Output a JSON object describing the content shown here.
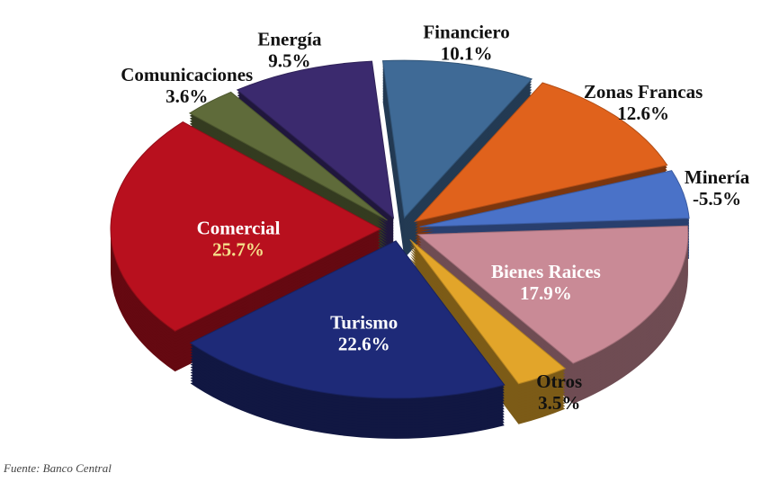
{
  "chart_data": {
    "type": "pie",
    "categories": [
      "Financiero",
      "Zonas Francas",
      "Minería",
      "Bienes Raices",
      "Otros",
      "Turismo",
      "Comercial",
      "Comunicaciones",
      "Energía"
    ],
    "values": [
      10.1,
      12.6,
      -5.5,
      17.9,
      3.5,
      22.6,
      25.7,
      3.6,
      9.5
    ],
    "value_labels": [
      "10.1%",
      "12.6%",
      "-5.5%",
      "17.9%",
      "3.5%",
      "22.6%",
      "25.7%",
      "3.6%",
      "9.5%"
    ],
    "colors": [
      "#3f6a96",
      "#e0621c",
      "#4a72c8",
      "#c98a96",
      "#e2a52a",
      "#1e2a78",
      "#b8101e",
      "#5f6b3a",
      "#3b2a6e"
    ],
    "source": "Fuente: Banco Central"
  }
}
